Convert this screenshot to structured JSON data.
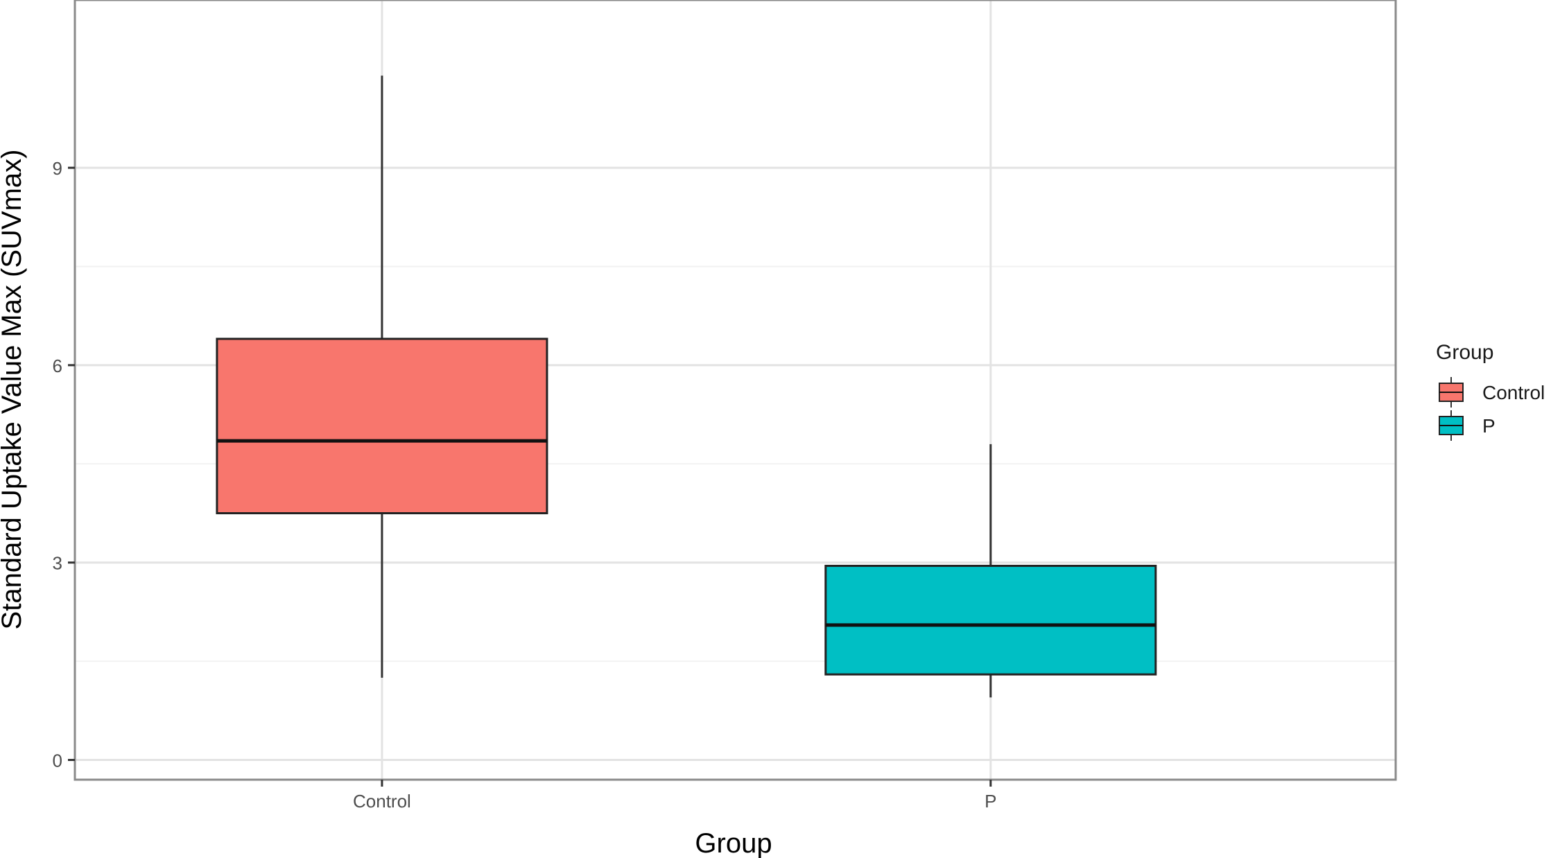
{
  "chart_data": {
    "type": "box",
    "xlabel": "Group",
    "ylabel": "Standard Uptake Value Max (SUVmax)",
    "ylim": [
      -0.3,
      11.55
    ],
    "yticks": [
      0,
      3,
      6,
      9
    ],
    "categories": [
      "Control",
      "P"
    ],
    "grid": true,
    "legend": {
      "title": "Group",
      "placement": "right",
      "entries": [
        {
          "label": "Control",
          "color": "#F8766D"
        },
        {
          "label": "P",
          "color": "#00BFC4"
        }
      ]
    },
    "series": [
      {
        "category": "Control",
        "color": "#F8766D",
        "whisker_low": 1.25,
        "q1": 3.75,
        "median": 4.85,
        "q3": 6.4,
        "whisker_high": 10.4
      },
      {
        "category": "P",
        "color": "#00BFC4",
        "whisker_low": 0.95,
        "q1": 1.3,
        "median": 2.05,
        "q3": 2.95,
        "whisker_high": 4.8
      }
    ]
  }
}
